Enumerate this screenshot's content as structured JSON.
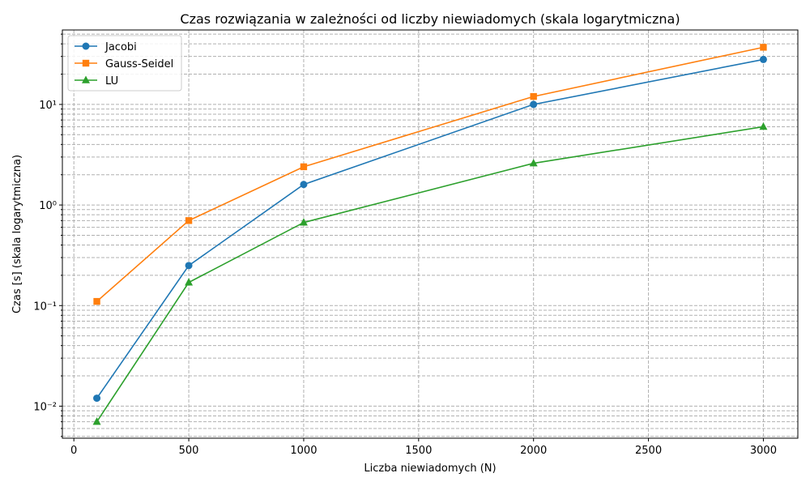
{
  "chart_data": {
    "type": "line",
    "title": "Czas rozwiązania w zależności od liczby niewiadomych (skala logarytmiczna)",
    "xlabel": "Liczba niewiadomych (N)",
    "ylabel": "Czas [s] (skala logarytmiczna)",
    "x": [
      100,
      500,
      1000,
      2000,
      3000
    ],
    "xlim": [
      -50,
      3150
    ],
    "ylim": [
      0.0048,
      55
    ],
    "yscale": "log",
    "xticks": [
      0,
      500,
      1000,
      1500,
      2000,
      2500,
      3000
    ],
    "yticks": [
      0.01,
      0.1,
      1,
      10
    ],
    "ytick_labels": [
      "10⁻²",
      "10⁻¹",
      "10⁰",
      "10¹"
    ],
    "grid": "major and minor, dashed",
    "legend_position": "top-left",
    "series": [
      {
        "name": "Jacobi",
        "color": "#1f77b4",
        "marker": "circle",
        "values": [
          0.012,
          0.25,
          1.6,
          10.0,
          28.0
        ]
      },
      {
        "name": "Gauss-Seidel",
        "color": "#ff7f0e",
        "marker": "square",
        "values": [
          0.11,
          0.7,
          2.4,
          12.0,
          37.0
        ]
      },
      {
        "name": "LU",
        "color": "#2ca02c",
        "marker": "triangle",
        "values": [
          0.007,
          0.17,
          0.67,
          2.6,
          6.0
        ]
      }
    ]
  }
}
